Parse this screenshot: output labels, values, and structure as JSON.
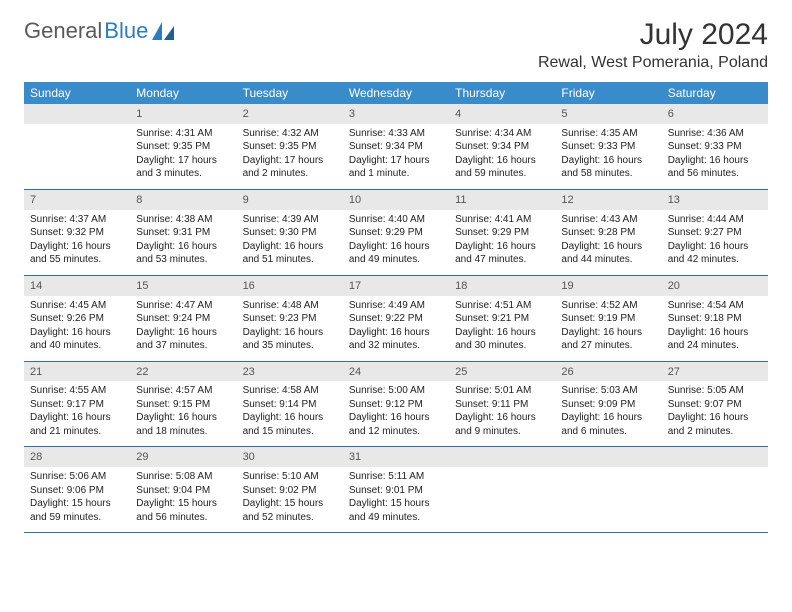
{
  "logo": {
    "text_gray": "General",
    "text_blue": "Blue"
  },
  "header": {
    "month_title": "July 2024",
    "location": "Rewal, West Pomerania, Poland"
  },
  "colors": {
    "header_bg": "#3a8bc9",
    "header_text": "#ffffff",
    "daynum_bg": "#e8e8e8",
    "week_divider": "#2f6fa3",
    "logo_gray": "#5a5a5a",
    "logo_blue": "#2b7cc0"
  },
  "weekdays": [
    "Sunday",
    "Monday",
    "Tuesday",
    "Wednesday",
    "Thursday",
    "Friday",
    "Saturday"
  ],
  "weeks": [
    [
      {
        "empty": true
      },
      {
        "day": "1",
        "sunrise": "Sunrise: 4:31 AM",
        "sunset": "Sunset: 9:35 PM",
        "daylight1": "Daylight: 17 hours",
        "daylight2": "and 3 minutes."
      },
      {
        "day": "2",
        "sunrise": "Sunrise: 4:32 AM",
        "sunset": "Sunset: 9:35 PM",
        "daylight1": "Daylight: 17 hours",
        "daylight2": "and 2 minutes."
      },
      {
        "day": "3",
        "sunrise": "Sunrise: 4:33 AM",
        "sunset": "Sunset: 9:34 PM",
        "daylight1": "Daylight: 17 hours",
        "daylight2": "and 1 minute."
      },
      {
        "day": "4",
        "sunrise": "Sunrise: 4:34 AM",
        "sunset": "Sunset: 9:34 PM",
        "daylight1": "Daylight: 16 hours",
        "daylight2": "and 59 minutes."
      },
      {
        "day": "5",
        "sunrise": "Sunrise: 4:35 AM",
        "sunset": "Sunset: 9:33 PM",
        "daylight1": "Daylight: 16 hours",
        "daylight2": "and 58 minutes."
      },
      {
        "day": "6",
        "sunrise": "Sunrise: 4:36 AM",
        "sunset": "Sunset: 9:33 PM",
        "daylight1": "Daylight: 16 hours",
        "daylight2": "and 56 minutes."
      }
    ],
    [
      {
        "day": "7",
        "sunrise": "Sunrise: 4:37 AM",
        "sunset": "Sunset: 9:32 PM",
        "daylight1": "Daylight: 16 hours",
        "daylight2": "and 55 minutes."
      },
      {
        "day": "8",
        "sunrise": "Sunrise: 4:38 AM",
        "sunset": "Sunset: 9:31 PM",
        "daylight1": "Daylight: 16 hours",
        "daylight2": "and 53 minutes."
      },
      {
        "day": "9",
        "sunrise": "Sunrise: 4:39 AM",
        "sunset": "Sunset: 9:30 PM",
        "daylight1": "Daylight: 16 hours",
        "daylight2": "and 51 minutes."
      },
      {
        "day": "10",
        "sunrise": "Sunrise: 4:40 AM",
        "sunset": "Sunset: 9:29 PM",
        "daylight1": "Daylight: 16 hours",
        "daylight2": "and 49 minutes."
      },
      {
        "day": "11",
        "sunrise": "Sunrise: 4:41 AM",
        "sunset": "Sunset: 9:29 PM",
        "daylight1": "Daylight: 16 hours",
        "daylight2": "and 47 minutes."
      },
      {
        "day": "12",
        "sunrise": "Sunrise: 4:43 AM",
        "sunset": "Sunset: 9:28 PM",
        "daylight1": "Daylight: 16 hours",
        "daylight2": "and 44 minutes."
      },
      {
        "day": "13",
        "sunrise": "Sunrise: 4:44 AM",
        "sunset": "Sunset: 9:27 PM",
        "daylight1": "Daylight: 16 hours",
        "daylight2": "and 42 minutes."
      }
    ],
    [
      {
        "day": "14",
        "sunrise": "Sunrise: 4:45 AM",
        "sunset": "Sunset: 9:26 PM",
        "daylight1": "Daylight: 16 hours",
        "daylight2": "and 40 minutes."
      },
      {
        "day": "15",
        "sunrise": "Sunrise: 4:47 AM",
        "sunset": "Sunset: 9:24 PM",
        "daylight1": "Daylight: 16 hours",
        "daylight2": "and 37 minutes."
      },
      {
        "day": "16",
        "sunrise": "Sunrise: 4:48 AM",
        "sunset": "Sunset: 9:23 PM",
        "daylight1": "Daylight: 16 hours",
        "daylight2": "and 35 minutes."
      },
      {
        "day": "17",
        "sunrise": "Sunrise: 4:49 AM",
        "sunset": "Sunset: 9:22 PM",
        "daylight1": "Daylight: 16 hours",
        "daylight2": "and 32 minutes."
      },
      {
        "day": "18",
        "sunrise": "Sunrise: 4:51 AM",
        "sunset": "Sunset: 9:21 PM",
        "daylight1": "Daylight: 16 hours",
        "daylight2": "and 30 minutes."
      },
      {
        "day": "19",
        "sunrise": "Sunrise: 4:52 AM",
        "sunset": "Sunset: 9:19 PM",
        "daylight1": "Daylight: 16 hours",
        "daylight2": "and 27 minutes."
      },
      {
        "day": "20",
        "sunrise": "Sunrise: 4:54 AM",
        "sunset": "Sunset: 9:18 PM",
        "daylight1": "Daylight: 16 hours",
        "daylight2": "and 24 minutes."
      }
    ],
    [
      {
        "day": "21",
        "sunrise": "Sunrise: 4:55 AM",
        "sunset": "Sunset: 9:17 PM",
        "daylight1": "Daylight: 16 hours",
        "daylight2": "and 21 minutes."
      },
      {
        "day": "22",
        "sunrise": "Sunrise: 4:57 AM",
        "sunset": "Sunset: 9:15 PM",
        "daylight1": "Daylight: 16 hours",
        "daylight2": "and 18 minutes."
      },
      {
        "day": "23",
        "sunrise": "Sunrise: 4:58 AM",
        "sunset": "Sunset: 9:14 PM",
        "daylight1": "Daylight: 16 hours",
        "daylight2": "and 15 minutes."
      },
      {
        "day": "24",
        "sunrise": "Sunrise: 5:00 AM",
        "sunset": "Sunset: 9:12 PM",
        "daylight1": "Daylight: 16 hours",
        "daylight2": "and 12 minutes."
      },
      {
        "day": "25",
        "sunrise": "Sunrise: 5:01 AM",
        "sunset": "Sunset: 9:11 PM",
        "daylight1": "Daylight: 16 hours",
        "daylight2": "and 9 minutes."
      },
      {
        "day": "26",
        "sunrise": "Sunrise: 5:03 AM",
        "sunset": "Sunset: 9:09 PM",
        "daylight1": "Daylight: 16 hours",
        "daylight2": "and 6 minutes."
      },
      {
        "day": "27",
        "sunrise": "Sunrise: 5:05 AM",
        "sunset": "Sunset: 9:07 PM",
        "daylight1": "Daylight: 16 hours",
        "daylight2": "and 2 minutes."
      }
    ],
    [
      {
        "day": "28",
        "sunrise": "Sunrise: 5:06 AM",
        "sunset": "Sunset: 9:06 PM",
        "daylight1": "Daylight: 15 hours",
        "daylight2": "and 59 minutes."
      },
      {
        "day": "29",
        "sunrise": "Sunrise: 5:08 AM",
        "sunset": "Sunset: 9:04 PM",
        "daylight1": "Daylight: 15 hours",
        "daylight2": "and 56 minutes."
      },
      {
        "day": "30",
        "sunrise": "Sunrise: 5:10 AM",
        "sunset": "Sunset: 9:02 PM",
        "daylight1": "Daylight: 15 hours",
        "daylight2": "and 52 minutes."
      },
      {
        "day": "31",
        "sunrise": "Sunrise: 5:11 AM",
        "sunset": "Sunset: 9:01 PM",
        "daylight1": "Daylight: 15 hours",
        "daylight2": "and 49 minutes."
      },
      {
        "empty": true
      },
      {
        "empty": true
      },
      {
        "empty": true
      }
    ]
  ]
}
